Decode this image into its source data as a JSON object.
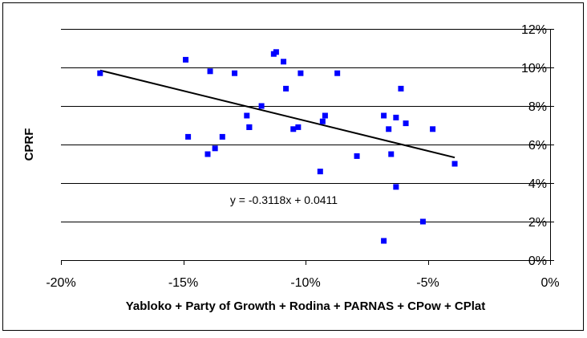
{
  "chart_data": {
    "type": "scatter",
    "title": "",
    "xlabel": "Yabloko + Party of Growth + Rodina + PARNAS + CPow + CPlat",
    "ylabel": "CPRF",
    "xlim": [
      -0.2,
      0.0
    ],
    "ylim": [
      0.0,
      0.12
    ],
    "x_ticks": [
      -0.2,
      -0.15,
      -0.1,
      -0.05,
      0.0
    ],
    "x_tick_labels": [
      "-20%",
      "-15%",
      "-10%",
      "-5%",
      "0%"
    ],
    "y_ticks": [
      0.0,
      0.02,
      0.04,
      0.06,
      0.08,
      0.1,
      0.12
    ],
    "y_tick_labels": [
      "0%",
      "2%",
      "4%",
      "6%",
      "8%",
      "10%",
      "12%"
    ],
    "grid": "horizontal",
    "legend": "none",
    "marker_color": "#0000ff",
    "trendline_color": "#000000",
    "trendline": {
      "slope": -0.3118,
      "intercept": 0.0411,
      "x_range": [
        -0.184,
        -0.039
      ],
      "equation_label": "y = -0.3118x + 0.0411"
    },
    "points": [
      {
        "x": -0.184,
        "y": 0.097
      },
      {
        "x": -0.149,
        "y": 0.104
      },
      {
        "x": -0.148,
        "y": 0.064
      },
      {
        "x": -0.14,
        "y": 0.055
      },
      {
        "x": -0.139,
        "y": 0.098
      },
      {
        "x": -0.137,
        "y": 0.058
      },
      {
        "x": -0.134,
        "y": 0.064
      },
      {
        "x": -0.129,
        "y": 0.097
      },
      {
        "x": -0.124,
        "y": 0.075
      },
      {
        "x": -0.123,
        "y": 0.069
      },
      {
        "x": -0.123,
        "y": 0.069
      },
      {
        "x": -0.118,
        "y": 0.08
      },
      {
        "x": -0.113,
        "y": 0.107
      },
      {
        "x": -0.112,
        "y": 0.108
      },
      {
        "x": -0.109,
        "y": 0.103
      },
      {
        "x": -0.108,
        "y": 0.089
      },
      {
        "x": -0.105,
        "y": 0.068
      },
      {
        "x": -0.103,
        "y": 0.069
      },
      {
        "x": -0.102,
        "y": 0.097
      },
      {
        "x": -0.094,
        "y": 0.046
      },
      {
        "x": -0.093,
        "y": 0.072
      },
      {
        "x": -0.092,
        "y": 0.075
      },
      {
        "x": -0.087,
        "y": 0.097
      },
      {
        "x": -0.079,
        "y": 0.054
      },
      {
        "x": -0.068,
        "y": 0.075
      },
      {
        "x": -0.068,
        "y": 0.01
      },
      {
        "x": -0.066,
        "y": 0.068
      },
      {
        "x": -0.065,
        "y": 0.055
      },
      {
        "x": -0.063,
        "y": 0.074
      },
      {
        "x": -0.063,
        "y": 0.038
      },
      {
        "x": -0.061,
        "y": 0.089
      },
      {
        "x": -0.059,
        "y": 0.071
      },
      {
        "x": -0.052,
        "y": 0.02
      },
      {
        "x": -0.048,
        "y": 0.068
      },
      {
        "x": -0.039,
        "y": 0.05
      }
    ]
  }
}
